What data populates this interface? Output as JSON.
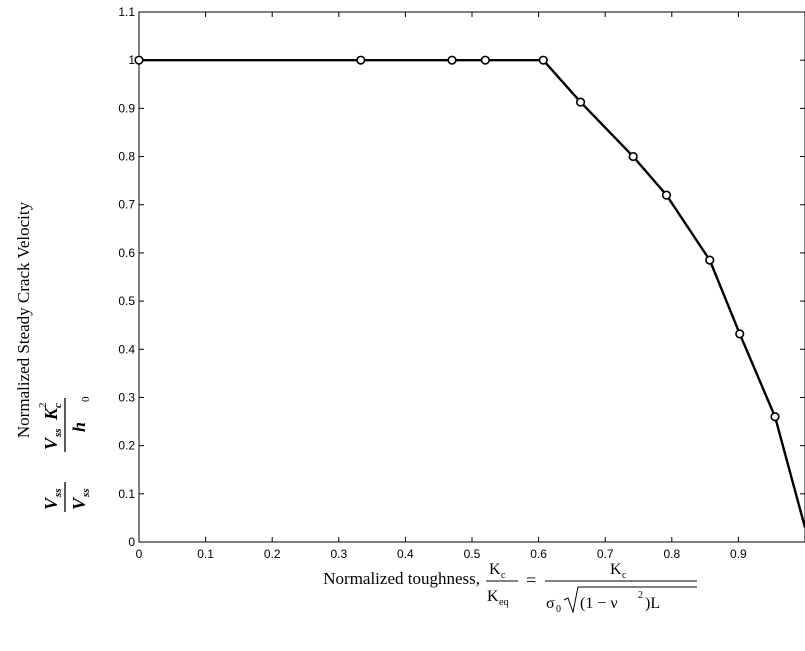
{
  "chart_data": {
    "type": "line",
    "title": "",
    "xlabel": "Normalized toughness,",
    "ylabel": "Normalized Steady Crack Velocity",
    "xlim": [
      0,
      1
    ],
    "ylim": [
      0,
      1.1
    ],
    "grid": false,
    "x_ticks": [
      "0",
      "0.1",
      "0.2",
      "0.3",
      "0.4",
      "0.5",
      "0.6",
      "0.7",
      "0.8",
      "0.9"
    ],
    "y_ticks": [
      "0",
      "0.1",
      "0.2",
      "0.3",
      "0.4",
      "0.5",
      "0.6",
      "0.7",
      "0.8",
      "0.9",
      "1",
      "1.1"
    ],
    "series": [
      {
        "color": "#000000",
        "marker": "circle",
        "x": [
          0,
          0.333,
          0.47,
          0.52,
          0.607,
          0.663,
          0.742,
          0.792,
          0.857,
          0.902,
          0.955,
          1.0
        ],
        "y": [
          1.0,
          1.0,
          1.0,
          1.0,
          1.0,
          0.913,
          0.8,
          0.72,
          0.585,
          0.432,
          0.26,
          0.03
        ],
        "marker_points": 11
      }
    ],
    "x_formula": {
      "lhs_num": "K",
      "lhs_num_sub": "c",
      "lhs_den": "K",
      "lhs_den_sub": "eq",
      "eq": "=",
      "rhs_num": "K",
      "rhs_num_sub": "c",
      "rhs_den_sigma": "σ",
      "rhs_den_sigma_sub": "0",
      "rhs_den_paren_open": "(1 − ν",
      "rhs_den_sup": "2",
      "rhs_den_paren_close": ")L"
    },
    "y_formula": {
      "v": "V",
      "ss": "ss",
      "k": "K",
      "k_sub": "c",
      "k_sup": "2",
      "h": "h",
      "zero": "0"
    }
  }
}
